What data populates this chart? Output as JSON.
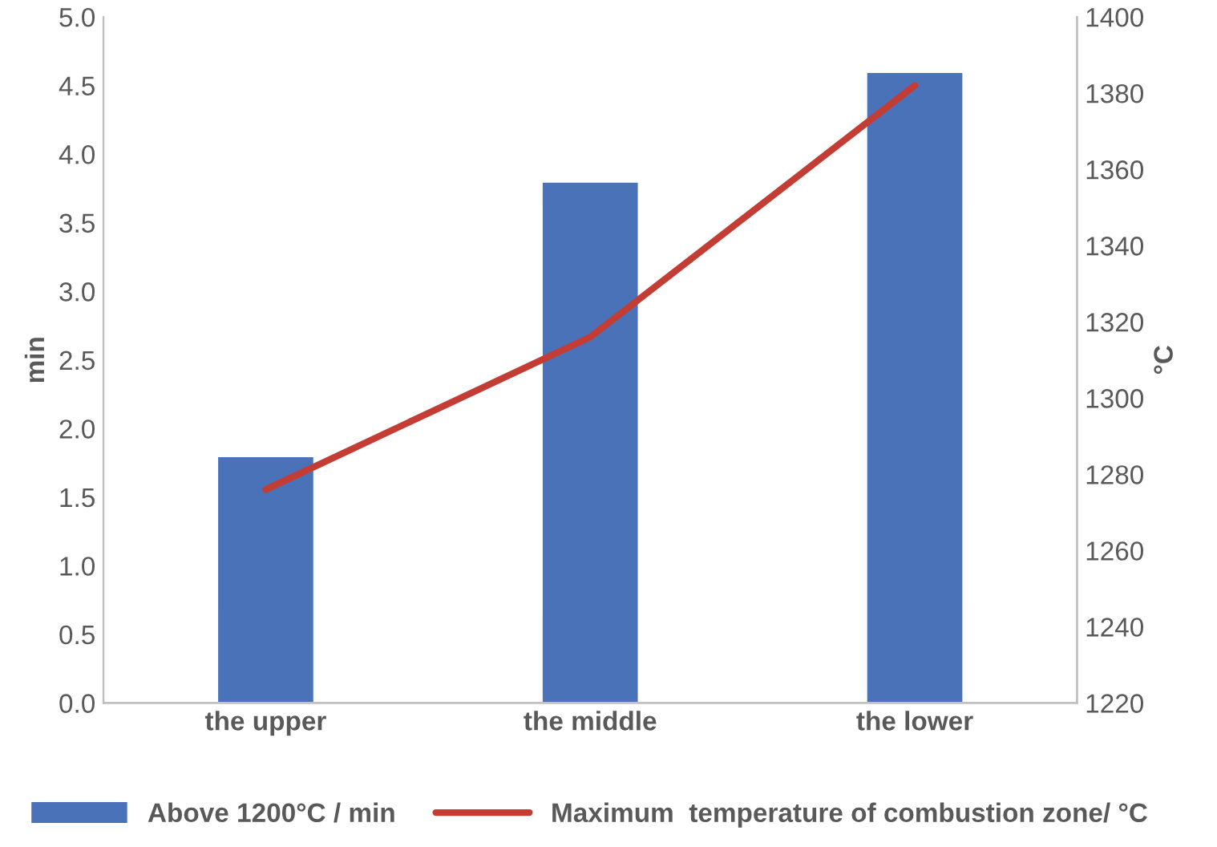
{
  "chart_data": {
    "type": "bar",
    "ylabel": "min",
    "y2label": "°C",
    "categories": [
      "the upper",
      "the middle",
      "the lower"
    ],
    "series": [
      {
        "name": "Above 1200°C / min",
        "color": "#4a72b8",
        "values": [
          1.8,
          3.8,
          4.6
        ]
      },
      {
        "name": "Maximum  temperature of combustion zone/ °C",
        "type": "line",
        "axis": "y2",
        "color": "#c43d35",
        "values": [
          1276,
          1316,
          1382
        ]
      }
    ],
    "ylim": [
      0,
      5
    ],
    "yticks": [
      {
        "value": 0,
        "label": "0.0"
      },
      {
        "value": 0.5,
        "label": "0.5"
      },
      {
        "value": 1,
        "label": "1.0"
      },
      {
        "value": 1.5,
        "label": "1.5"
      },
      {
        "value": 2,
        "label": "2.0"
      },
      {
        "value": 2.5,
        "label": "2.5"
      },
      {
        "value": 3,
        "label": "3.0"
      },
      {
        "value": 3.5,
        "label": "3.5"
      },
      {
        "value": 4,
        "label": "4.0"
      },
      {
        "value": 4.5,
        "label": "4.5"
      },
      {
        "value": 5,
        "label": "5.0"
      }
    ],
    "y2lim": [
      1220,
      1400
    ],
    "y2ticks": [
      1220,
      1240,
      1260,
      1280,
      1300,
      1320,
      1340,
      1360,
      1380,
      1400
    ],
    "grid": false,
    "legend": "bottom",
    "marker": "none",
    "line_style": "solid"
  }
}
